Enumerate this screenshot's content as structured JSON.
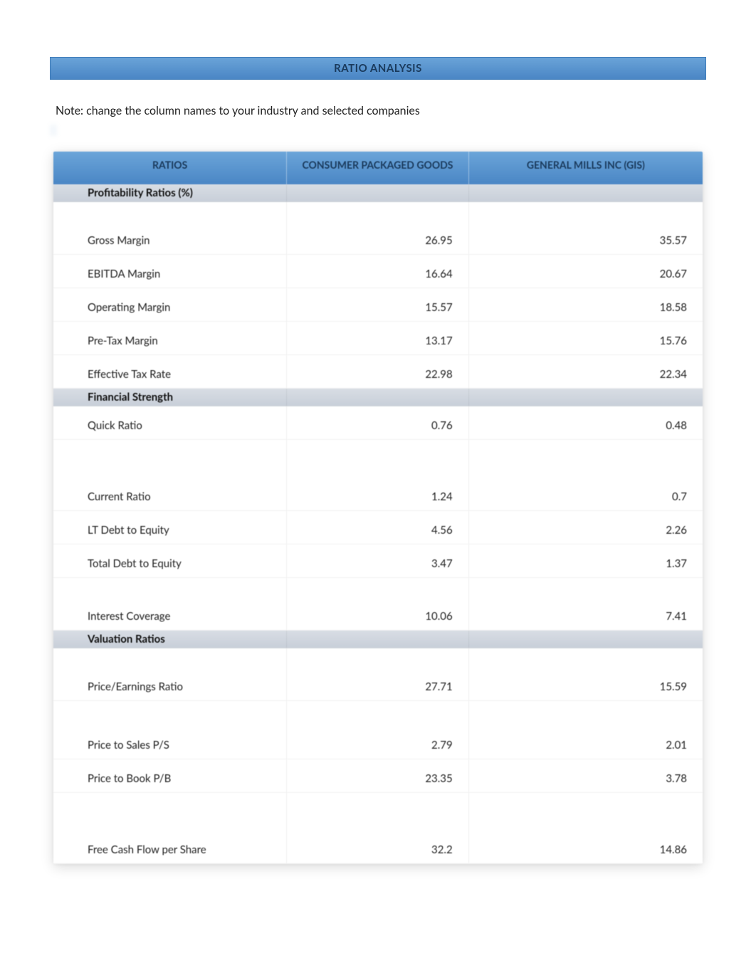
{
  "title": "RATIO ANALYSIS",
  "note": "Note: change the column names to your industry and selected companies",
  "columns": {
    "col1": "RATIOS",
    "col2": "CONSUMER PACKAGED GOODS",
    "col3": "GENERAL MILLS INC (GIS)"
  },
  "sections": [
    {
      "name": "Profitability Ratios (%)",
      "rows": [
        {
          "label": "Gross Margin",
          "v1": "26.95",
          "v2": "35.57",
          "cls": "tall3"
        },
        {
          "label": "EBITDA Margin",
          "v1": "16.64",
          "v2": "20.67",
          "cls": ""
        },
        {
          "label": "Operating Margin",
          "v1": "15.57",
          "v2": "18.58",
          "cls": ""
        },
        {
          "label": "Pre-Tax Margin",
          "v1": "13.17",
          "v2": "15.76",
          "cls": ""
        },
        {
          "label": "Effective Tax Rate",
          "v1": "22.98",
          "v2": "22.34",
          "cls": ""
        }
      ]
    },
    {
      "name": "Financial Strength",
      "rows": [
        {
          "label": "Quick Ratio",
          "v1": "0.76",
          "v2": "0.48",
          "cls": ""
        },
        {
          "label": "Current Ratio",
          "v1": "1.24",
          "v2": "0.7",
          "cls": "tall"
        },
        {
          "label": "LT Debt to Equity",
          "v1": "4.56",
          "v2": "2.26",
          "cls": ""
        },
        {
          "label": "Total Debt to Equity",
          "v1": "3.47",
          "v2": "1.37",
          "cls": ""
        },
        {
          "label": "Interest Coverage",
          "v1": "10.06",
          "v2": "7.41",
          "cls": "tall3"
        }
      ]
    },
    {
      "name": "Valuation Ratios",
      "rows": [
        {
          "label": "Price/Earnings Ratio",
          "v1": "27.71",
          "v2": "15.59",
          "cls": "tall3"
        },
        {
          "label": "Price to Sales P/S",
          "v1": "2.79",
          "v2": "2.01",
          "cls": "tall2"
        },
        {
          "label": "Price to Book P/B",
          "v1": "23.35",
          "v2": "3.78",
          "cls": ""
        },
        {
          "label": "Free Cash Flow per Share",
          "v1": "32.2",
          "v2": "14.86",
          "cls": "tall"
        }
      ]
    }
  ],
  "colors": {
    "header_bg_top": "#6ba5d9",
    "header_bg_bottom": "#4a86c5",
    "header_text": "#1a3a5c",
    "section_bg": "#c8cfd9",
    "cell_border": "rgba(0,0,0,0.06)",
    "body_bg": "#ffffff",
    "text": "#222222"
  }
}
